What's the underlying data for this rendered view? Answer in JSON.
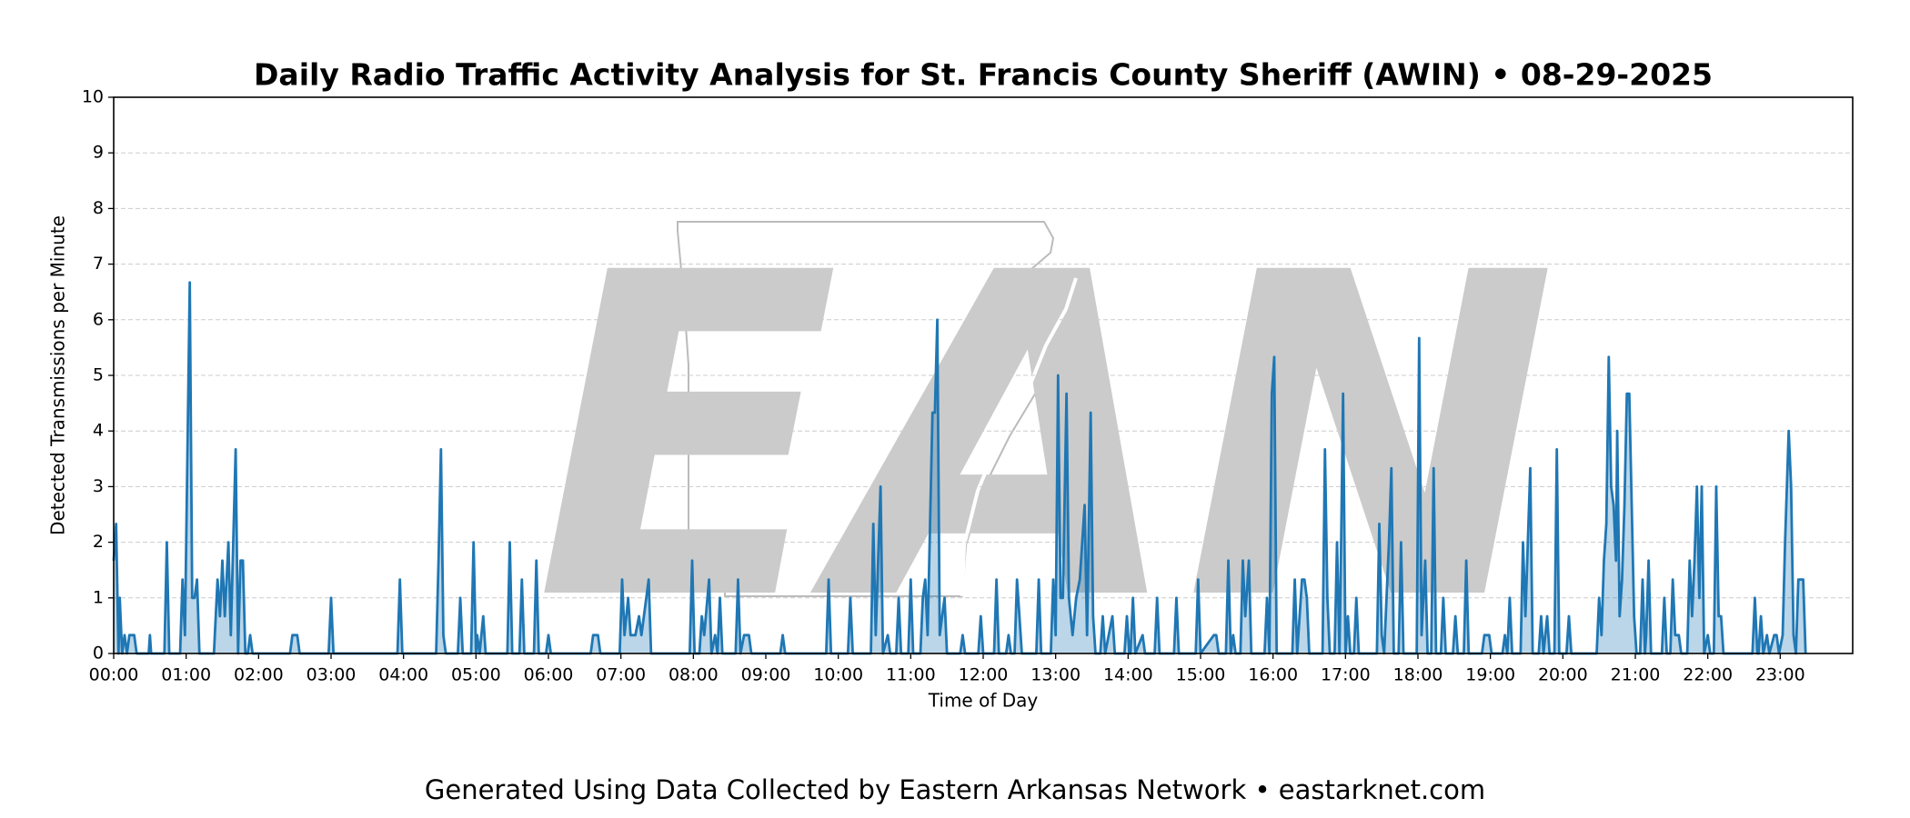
{
  "chart_data": {
    "type": "line",
    "title": "Daily Radio Traffic Activity Analysis for St. Francis County Sheriff (AWIN) • 08-29-2025",
    "xlabel": "Time of Day",
    "ylabel": "Detected Transmissions per Minute",
    "xlim": [
      0,
      1440
    ],
    "ylim": [
      0,
      10
    ],
    "yticks": [
      0,
      1,
      2,
      3,
      4,
      5,
      6,
      7,
      8,
      9,
      10
    ],
    "xticks": [
      {
        "value": 0,
        "label": "00:00"
      },
      {
        "value": 60,
        "label": "01:00"
      },
      {
        "value": 120,
        "label": "02:00"
      },
      {
        "value": 180,
        "label": "03:00"
      },
      {
        "value": 240,
        "label": "04:00"
      },
      {
        "value": 300,
        "label": "05:00"
      },
      {
        "value": 360,
        "label": "06:00"
      },
      {
        "value": 420,
        "label": "07:00"
      },
      {
        "value": 480,
        "label": "08:00"
      },
      {
        "value": 540,
        "label": "09:00"
      },
      {
        "value": 600,
        "label": "10:00"
      },
      {
        "value": 660,
        "label": "11:00"
      },
      {
        "value": 720,
        "label": "12:00"
      },
      {
        "value": 780,
        "label": "13:00"
      },
      {
        "value": 840,
        "label": "14:00"
      },
      {
        "value": 900,
        "label": "15:00"
      },
      {
        "value": 960,
        "label": "16:00"
      },
      {
        "value": 1020,
        "label": "17:00"
      },
      {
        "value": 1080,
        "label": "18:00"
      },
      {
        "value": 1140,
        "label": "19:00"
      },
      {
        "value": 1200,
        "label": "20:00"
      },
      {
        "value": 1260,
        "label": "21:00"
      },
      {
        "value": 1320,
        "label": "22:00"
      },
      {
        "value": 1380,
        "label": "23:00"
      }
    ],
    "grid": "y",
    "fill": true,
    "series": [
      {
        "color": "#1f77b4",
        "x": [
          0,
          2,
          4,
          5,
          7,
          9,
          11,
          13,
          17,
          19,
          29,
          30,
          31,
          42,
          44,
          46,
          55,
          57,
          59,
          63,
          65,
          67,
          69,
          71,
          83,
          86,
          88,
          90,
          92,
          95,
          97,
          101,
          103,
          105,
          107,
          109,
          111,
          113,
          115,
          146,
          148,
          152,
          154,
          178,
          180,
          182,
          235,
          237,
          239,
          267,
          269,
          271,
          273,
          275,
          285,
          287,
          289,
          296,
          298,
          300,
          301,
          303,
          306,
          308,
          326,
          328,
          330,
          336,
          338,
          340,
          348,
          350,
          352,
          358,
          360,
          362,
          395,
          397,
          401,
          403,
          419,
          421,
          423,
          426,
          428,
          432,
          435,
          437,
          443,
          445,
          477,
          479,
          481,
          485,
          487,
          489,
          493,
          495,
          498,
          500,
          502,
          504,
          515,
          517,
          519,
          522,
          526,
          528,
          552,
          554,
          556,
          590,
          592,
          594,
          608,
          610,
          612,
          627,
          629,
          631,
          635,
          637,
          641,
          643,
          648,
          650,
          652,
          658,
          660,
          662,
          668,
          670,
          672,
          674,
          678,
          680,
          682,
          684,
          688,
          690,
          701,
          703,
          705,
          716,
          718,
          720,
          729,
          731,
          733,
          739,
          741,
          743,
          746,
          748,
          750,
          752,
          764,
          766,
          768,
          776,
          778,
          780,
          782,
          784,
          786,
          789,
          791,
          794,
          797,
          800,
          802,
          804,
          806,
          809,
          811,
          813,
          817,
          819,
          821,
          827,
          829,
          837,
          839,
          841,
          842,
          844,
          846,
          852,
          854,
          862,
          864,
          866,
          878,
          880,
          882,
          896,
          898,
          900,
          911,
          913,
          915,
          921,
          923,
          925,
          927,
          929,
          933,
          935,
          937,
          940,
          942,
          953,
          955,
          957,
          959,
          961,
          963,
          976,
          978,
          980,
          984,
          986,
          988,
          990,
          1001,
          1003,
          1005,
          1007,
          1011,
          1013,
          1015,
          1016,
          1018,
          1020,
          1022,
          1024,
          1027,
          1029,
          1031,
          1046,
          1048,
          1050,
          1052,
          1056,
          1058,
          1060,
          1064,
          1066,
          1068,
          1079,
          1081,
          1083,
          1086,
          1088,
          1091,
          1093,
          1095,
          1099,
          1101,
          1103,
          1109,
          1111,
          1113,
          1118,
          1120,
          1122,
          1133,
          1135,
          1139,
          1141,
          1150,
          1152,
          1154,
          1156,
          1158,
          1165,
          1167,
          1169,
          1171,
          1173,
          1175,
          1180,
          1182,
          1184,
          1187,
          1189,
          1193,
          1195,
          1197,
          1203,
          1205,
          1207,
          1228,
          1230,
          1232,
          1234,
          1236,
          1238,
          1240,
          1242,
          1244,
          1245,
          1247,
          1249,
          1251,
          1253,
          1255,
          1257,
          1259,
          1261,
          1264,
          1266,
          1268,
          1269,
          1271,
          1273,
          1282,
          1284,
          1286,
          1289,
          1291,
          1293,
          1296,
          1298,
          1303,
          1305,
          1307,
          1309,
          1311,
          1313,
          1315,
          1317,
          1320,
          1322,
          1325,
          1327,
          1329,
          1331,
          1333,
          1357,
          1359,
          1361,
          1362,
          1364,
          1366,
          1369,
          1371,
          1375,
          1377,
          1379,
          1382,
          1384,
          1387,
          1389,
          1391,
          1393,
          1395,
          1397,
          1399,
          1401
        ],
        "values": [
          1.67,
          2.33,
          0,
          1,
          0,
          0.33,
          0,
          0.33,
          0.33,
          0,
          0,
          0.33,
          0,
          0,
          2,
          0,
          0,
          1.33,
          0.33,
          6.67,
          1,
          1,
          1.33,
          0,
          0,
          1.33,
          0.67,
          1.67,
          0.67,
          2,
          0.33,
          3.67,
          0,
          1.67,
          1.67,
          0,
          0,
          0.33,
          0,
          0,
          0.33,
          0.33,
          0,
          0,
          1,
          0,
          0,
          1.33,
          0,
          0,
          1.67,
          3.67,
          0.33,
          0,
          0,
          1,
          0,
          0,
          2,
          0,
          0.33,
          0,
          0.67,
          0,
          0,
          2,
          0,
          0,
          1.33,
          0,
          0,
          1.67,
          0,
          0,
          0.33,
          0,
          0,
          0.33,
          0.33,
          0,
          0,
          1.33,
          0.33,
          1,
          0.33,
          0.33,
          0.67,
          0.33,
          1.33,
          0,
          0,
          1.67,
          0,
          0,
          0.67,
          0.33,
          1.33,
          0,
          0.33,
          0,
          1,
          0,
          0,
          1.33,
          0,
          0.33,
          0.33,
          0,
          0,
          0.33,
          0,
          0,
          1.33,
          0,
          0,
          1,
          0,
          0,
          2.33,
          0.33,
          3,
          0,
          0.33,
          0,
          0,
          1,
          0,
          0,
          1.33,
          0,
          0,
          1,
          1.33,
          0.33,
          4.33,
          4.33,
          6,
          0.33,
          1,
          0,
          0,
          0.33,
          0,
          0,
          0.67,
          0,
          0,
          1.33,
          0,
          0,
          0.33,
          0,
          0,
          1.33,
          0.67,
          0,
          0,
          1.33,
          0,
          0,
          1.33,
          0.33,
          5,
          1,
          1,
          4.67,
          1,
          0.33,
          1,
          1.33,
          2,
          2.67,
          0.33,
          4.33,
          0.67,
          0,
          0,
          0.67,
          0,
          0.67,
          0,
          0,
          0.67,
          0,
          0,
          1,
          0,
          0.33,
          0,
          0,
          1,
          0,
          0,
          1,
          0,
          0,
          1.33,
          0,
          0.33,
          0.33,
          0,
          0,
          1.67,
          0,
          0.33,
          0,
          0,
          1.67,
          0.67,
          1.67,
          0,
          0,
          1,
          0,
          4.67,
          5.33,
          0,
          0,
          1.33,
          0,
          1.33,
          1.33,
          1,
          0,
          0,
          3.67,
          1,
          0,
          0,
          2,
          0,
          1.33,
          4.67,
          0,
          0.67,
          0,
          0,
          1,
          0,
          0,
          2.33,
          0.33,
          0,
          2,
          3.33,
          0,
          0,
          2,
          0,
          0,
          5.67,
          0.33,
          1.67,
          0,
          0,
          3.33,
          0,
          0,
          1,
          0,
          0,
          0.67,
          0,
          0,
          1.67,
          0,
          0,
          0.33,
          0.33,
          0,
          0,
          0.33,
          0,
          1,
          0,
          0,
          2,
          0.67,
          2,
          3.33,
          0,
          0,
          0.67,
          0,
          0.67,
          0,
          0,
          3.67,
          0,
          0,
          0.67,
          0,
          0,
          1,
          0.33,
          1.67,
          2.33,
          5.33,
          3,
          2.67,
          1.67,
          4,
          0.67,
          1.33,
          2.67,
          4.67,
          4.67,
          2.67,
          0.67,
          0,
          0,
          1.33,
          0,
          0.33,
          1.67,
          0,
          0,
          1,
          0,
          0,
          1.33,
          0.33,
          0.33,
          0,
          0,
          1.67,
          0.67,
          1.67,
          3,
          1,
          3,
          0,
          0.33,
          0,
          0,
          3,
          0.67,
          0.67,
          0,
          0,
          1,
          0,
          0,
          0.67,
          0,
          0.33,
          0,
          0.33,
          0.33,
          0,
          0.33,
          2,
          4,
          3,
          0.33,
          0,
          1.33,
          1.33,
          1.33,
          0
        ]
      }
    ]
  },
  "watermark": "EAN",
  "footer": "Generated Using Data Collected by Eastern Arkansas Network • eastarknet.com"
}
